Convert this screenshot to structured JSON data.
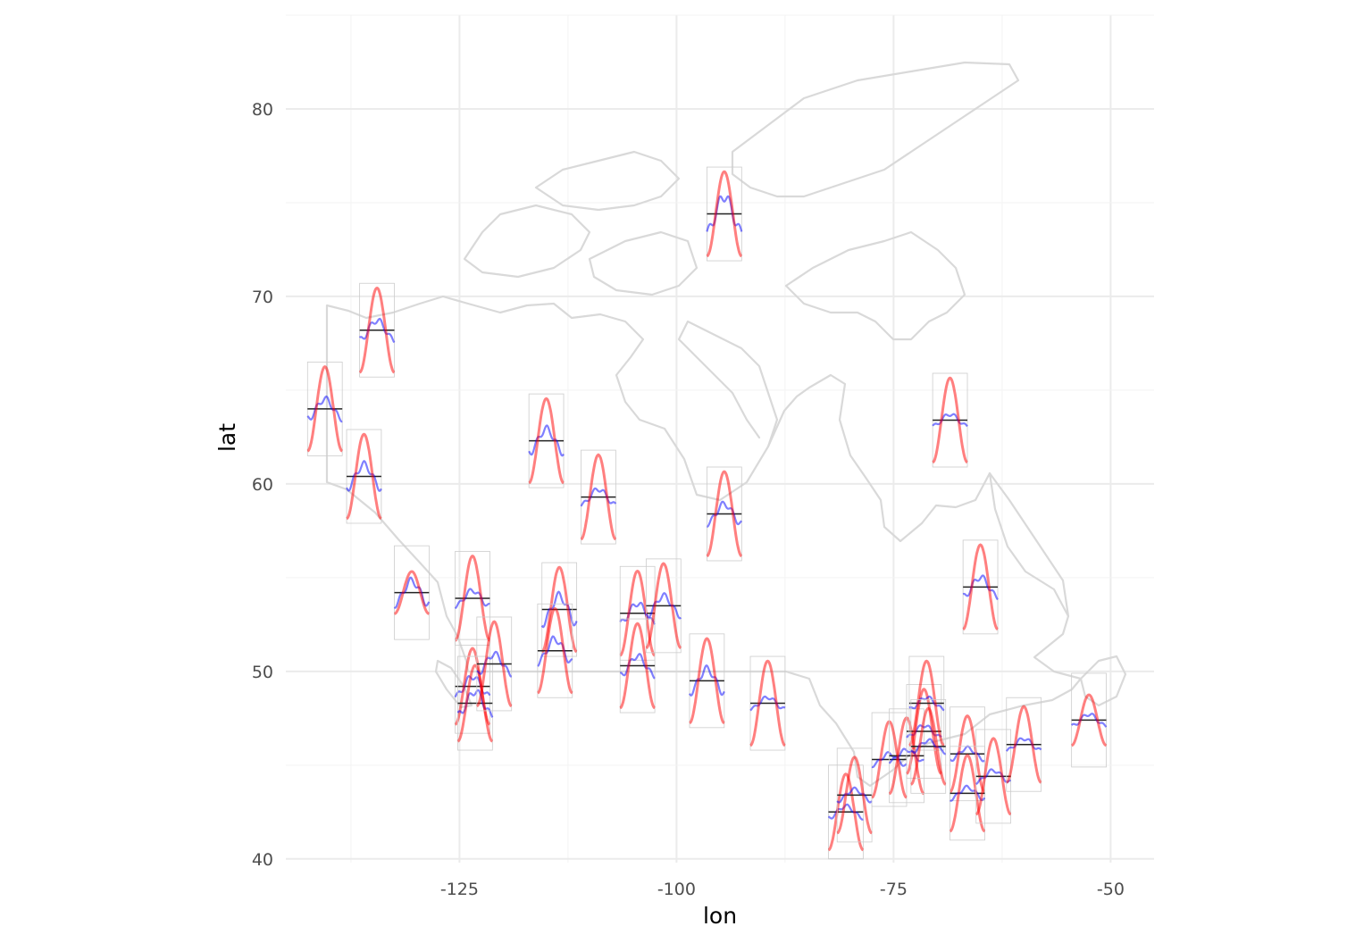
{
  "chart_data": {
    "type": "glyph-map",
    "title": "",
    "xlabel": "lon",
    "ylabel": "lat",
    "xlim": [
      -145,
      -45
    ],
    "ylim": [
      39.8,
      85
    ],
    "x_ticks": [
      -125,
      -100,
      -75,
      -50
    ],
    "y_ticks": [
      40,
      50,
      60,
      70,
      80
    ],
    "grid": true,
    "background_map": "Canada coastline",
    "colors": {
      "series_a": "#ff0000",
      "series_b": "#0000ff",
      "reference_line": "#222222",
      "map": "#d9d9d9"
    },
    "glyph_width_lon": 4,
    "glyph_height_lat": 5,
    "stations": [
      {
        "lon": -94.5,
        "lat": 74.4,
        "red_amp": 1.0,
        "blue_amp": 0.9
      },
      {
        "lon": -134.5,
        "lat": 68.2,
        "red_amp": 1.0,
        "blue_amp": 0.5
      },
      {
        "lon": -140.5,
        "lat": 64.0,
        "red_amp": 1.0,
        "blue_amp": 0.5
      },
      {
        "lon": -136.0,
        "lat": 60.4,
        "red_amp": 1.0,
        "blue_amp": 0.6
      },
      {
        "lon": -130.5,
        "lat": 54.2,
        "red_amp": 0.5,
        "blue_amp": 0.6
      },
      {
        "lon": -123.5,
        "lat": 53.9,
        "red_amp": 1.0,
        "blue_amp": 0.4
      },
      {
        "lon": -123.5,
        "lat": 49.2,
        "red_amp": 0.9,
        "blue_amp": 0.5
      },
      {
        "lon": -123.2,
        "lat": 48.3,
        "red_amp": 0.9,
        "blue_amp": 0.6
      },
      {
        "lon": -121.0,
        "lat": 50.4,
        "red_amp": 1.0,
        "blue_amp": 0.5
      },
      {
        "lon": -115.0,
        "lat": 62.3,
        "red_amp": 1.0,
        "blue_amp": 0.6
      },
      {
        "lon": -113.5,
        "lat": 53.3,
        "red_amp": 1.0,
        "blue_amp": 0.7
      },
      {
        "lon": -114.0,
        "lat": 51.1,
        "red_amp": 1.0,
        "blue_amp": 0.6
      },
      {
        "lon": -109.0,
        "lat": 59.3,
        "red_amp": 1.0,
        "blue_amp": 0.4
      },
      {
        "lon": -104.5,
        "lat": 53.1,
        "red_amp": 1.0,
        "blue_amp": 0.5
      },
      {
        "lon": -104.5,
        "lat": 50.3,
        "red_amp": 1.0,
        "blue_amp": 0.5
      },
      {
        "lon": -101.5,
        "lat": 53.5,
        "red_amp": 1.0,
        "blue_amp": 0.5
      },
      {
        "lon": -96.5,
        "lat": 49.5,
        "red_amp": 1.0,
        "blue_amp": 0.6
      },
      {
        "lon": -94.5,
        "lat": 58.4,
        "red_amp": 1.0,
        "blue_amp": 0.5
      },
      {
        "lon": -89.5,
        "lat": 48.3,
        "red_amp": 1.0,
        "blue_amp": 0.3
      },
      {
        "lon": -68.5,
        "lat": 63.4,
        "red_amp": 1.0,
        "blue_amp": 0.3
      },
      {
        "lon": -65.0,
        "lat": 54.5,
        "red_amp": 1.0,
        "blue_amp": 0.5
      },
      {
        "lon": -80.5,
        "lat": 42.5,
        "red_amp": 0.9,
        "blue_amp": 0.3
      },
      {
        "lon": -79.5,
        "lat": 43.4,
        "red_amp": 0.9,
        "blue_amp": 0.3
      },
      {
        "lon": -75.5,
        "lat": 45.3,
        "red_amp": 0.9,
        "blue_amp": 0.3
      },
      {
        "lon": -73.5,
        "lat": 45.5,
        "red_amp": 0.9,
        "blue_amp": 0.3
      },
      {
        "lon": -71.5,
        "lat": 46.8,
        "red_amp": 1.0,
        "blue_amp": 0.3
      },
      {
        "lon": -71.2,
        "lat": 48.3,
        "red_amp": 1.0,
        "blue_amp": 0.3
      },
      {
        "lon": -71.0,
        "lat": 46.0,
        "red_amp": 0.9,
        "blue_amp": 0.3
      },
      {
        "lon": -66.5,
        "lat": 45.6,
        "red_amp": 0.9,
        "blue_amp": 0.3
      },
      {
        "lon": -66.5,
        "lat": 43.5,
        "red_amp": 0.9,
        "blue_amp": 0.3
      },
      {
        "lon": -63.5,
        "lat": 44.4,
        "red_amp": 0.9,
        "blue_amp": 0.3
      },
      {
        "lon": -60.0,
        "lat": 46.1,
        "red_amp": 0.9,
        "blue_amp": 0.3
      },
      {
        "lon": -52.5,
        "lat": 47.4,
        "red_amp": 0.6,
        "blue_amp": 0.3
      }
    ]
  }
}
